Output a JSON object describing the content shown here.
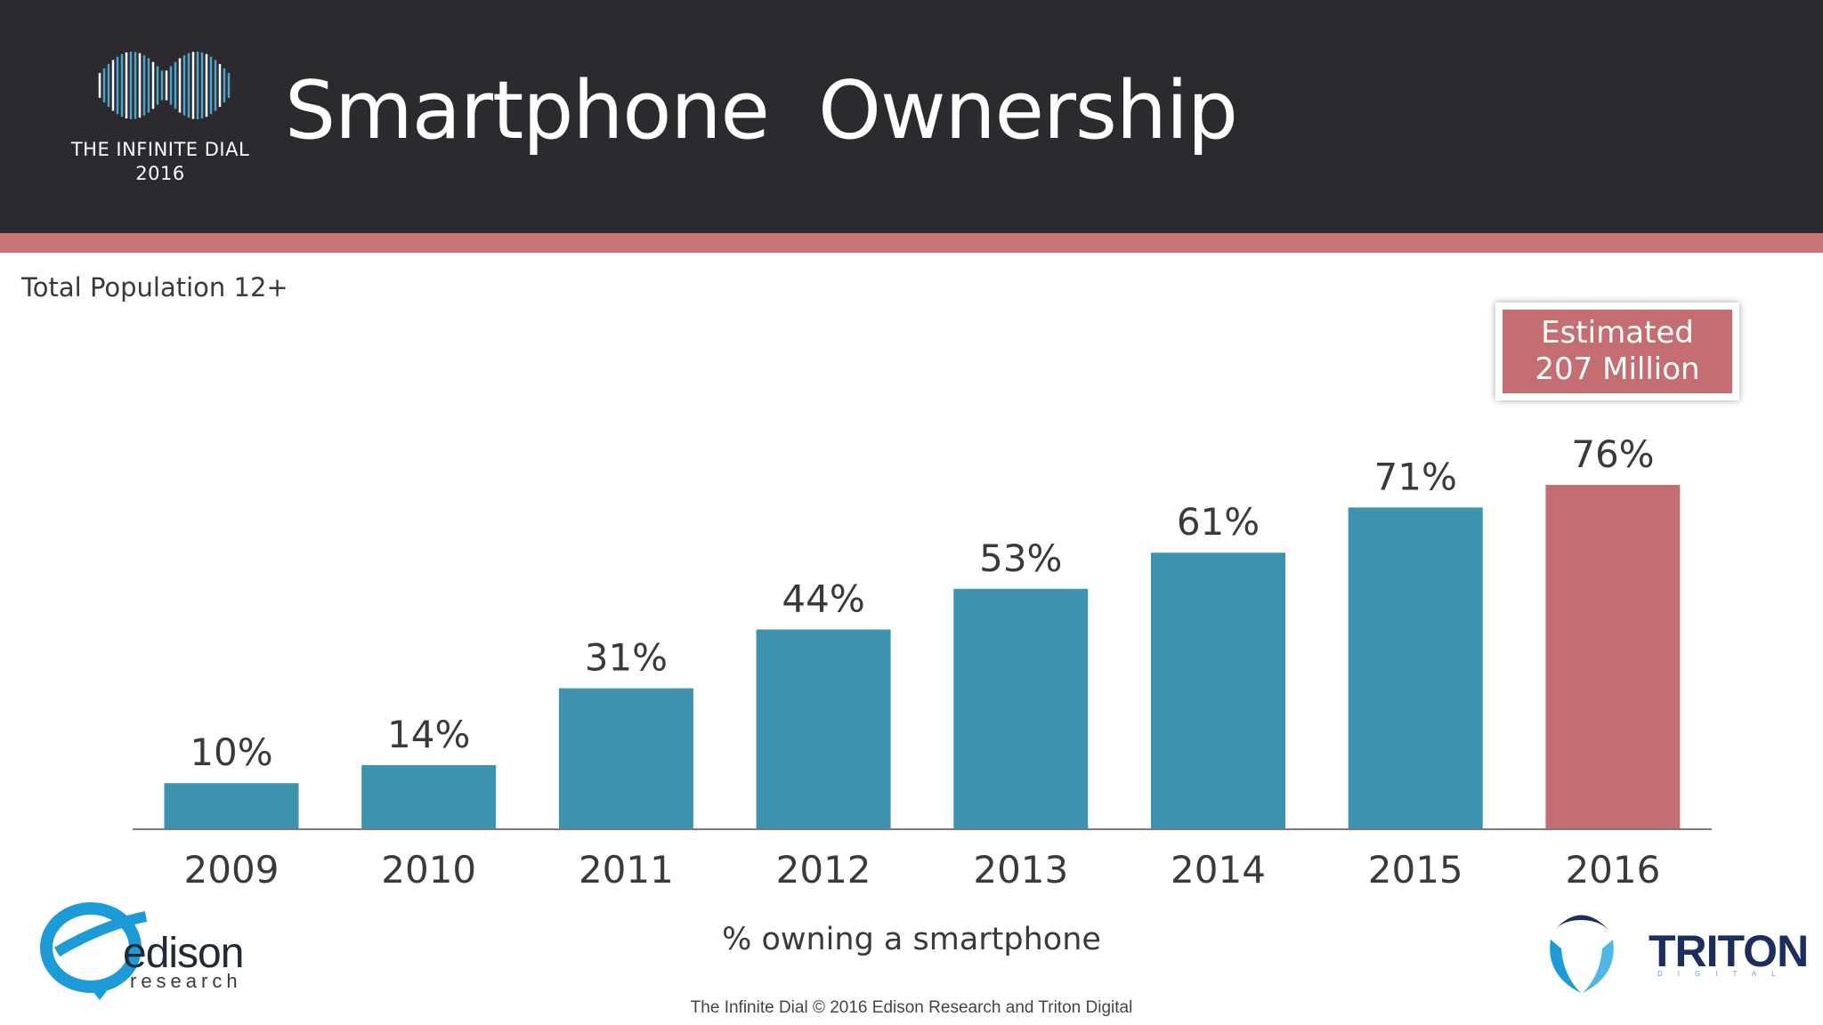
{
  "header": {
    "title": "Smartphone  Ownership",
    "logo_text_line1": "THE INFINITE DIAL",
    "logo_text_line2": "2016",
    "logo_icon": "infinity-icon"
  },
  "subtitle": "Total  Population  12+",
  "callout": {
    "line1": "Estimated",
    "line2": "207 Million"
  },
  "colors": {
    "header_bg": "#2c2a2e",
    "accent": "#c87575",
    "bar": "#3d92ae",
    "highlight_bar": "#c46e72"
  },
  "chart_data": {
    "type": "bar",
    "title": "Smartphone  Ownership",
    "xlabel": "% owning a smartphone",
    "ylabel": "",
    "categories": [
      "2009",
      "2010",
      "2011",
      "2012",
      "2013",
      "2014",
      "2015",
      "2016"
    ],
    "values": [
      10,
      14,
      31,
      44,
      53,
      61,
      71,
      76
    ],
    "labels": [
      "10%",
      "14%",
      "31%",
      "44%",
      "53%",
      "61%",
      "71%",
      "76%"
    ],
    "highlight_index": 7,
    "ylim": [
      0,
      100
    ],
    "grid": false
  },
  "footer": {
    "text": "The Infinite Dial   © 2016 Edison Research and Triton Digital"
  },
  "brands": {
    "edison": {
      "word": "edison",
      "sub": "research"
    },
    "triton": {
      "word": "TRITON",
      "sub": "DIGITAL"
    }
  }
}
